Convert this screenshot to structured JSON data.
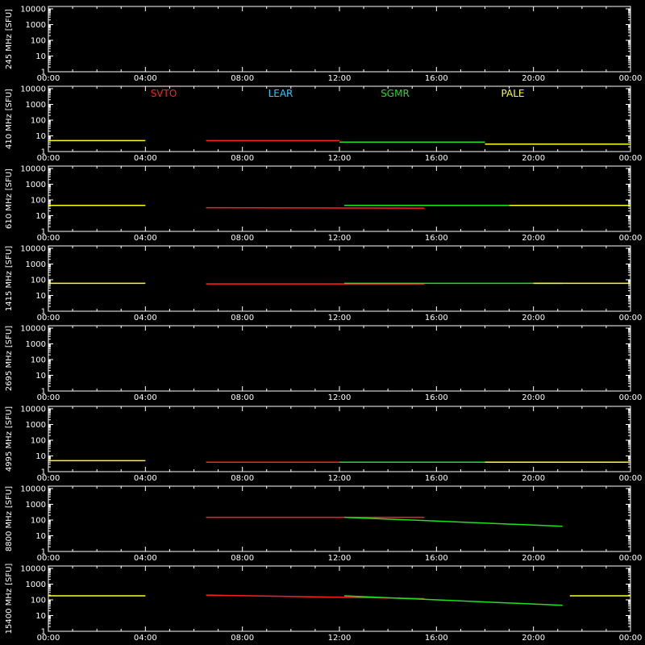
{
  "chart_data": {
    "type": "scatter",
    "x_unit": "UT",
    "x_ticks": [
      "00:00",
      "04:00",
      "08:00",
      "12:00",
      "16:00",
      "20:00",
      "00:00"
    ],
    "y_scale": "log",
    "y_ticks": [
      "1",
      "10",
      "100",
      "1000",
      "10000"
    ],
    "ylim": [
      1,
      10000
    ],
    "y_unit": "[SFU]",
    "legend": [
      {
        "name": "SVTO",
        "color": "#ff2020"
      },
      {
        "name": "LEAR",
        "color": "#20d0ff"
      },
      {
        "name": "SGMR",
        "color": "#20e020"
      },
      {
        "name": "PALE",
        "color": "#ffff20"
      }
    ],
    "panels": [
      {
        "label": "245 MHz",
        "segments": []
      },
      {
        "label": "410 MHz",
        "segments": [
          {
            "station": "PALE",
            "t0": 0,
            "t1": 4,
            "v0": 5,
            "v1": 5
          },
          {
            "station": "SVTO",
            "t0": 6.5,
            "t1": 12,
            "v0": 5,
            "v1": 5
          },
          {
            "station": "SGMR",
            "t0": 12,
            "t1": 18,
            "v0": 4,
            "v1": 4
          },
          {
            "station": "PALE",
            "t0": 18,
            "t1": 24,
            "v0": 3,
            "v1": 3
          }
        ]
      },
      {
        "label": "610 MHz",
        "segments": [
          {
            "station": "PALE",
            "t0": 0,
            "t1": 4,
            "v0": 45,
            "v1": 45
          },
          {
            "station": "SVTO",
            "t0": 6.5,
            "t1": 15.5,
            "v0": 32,
            "v1": 30
          },
          {
            "station": "SGMR",
            "t0": 12.2,
            "t1": 21.2,
            "v0": 45,
            "v1": 45
          },
          {
            "station": "PALE",
            "t0": 19,
            "t1": 24,
            "v0": 45,
            "v1": 45
          }
        ]
      },
      {
        "label": "1415 MHz",
        "segments": [
          {
            "station": "PALE",
            "t0": 0,
            "t1": 4,
            "v0": 60,
            "v1": 60
          },
          {
            "station": "SVTO",
            "t0": 6.5,
            "t1": 15.5,
            "v0": 55,
            "v1": 55
          },
          {
            "station": "SGMR",
            "t0": 12.2,
            "t1": 21.2,
            "v0": 60,
            "v1": 60
          },
          {
            "station": "PALE",
            "t0": 20,
            "t1": 24,
            "v0": 60,
            "v1": 60
          }
        ]
      },
      {
        "label": "2695 MHz",
        "segments": []
      },
      {
        "label": "4995 MHz",
        "segments": [
          {
            "station": "PALE",
            "t0": 0,
            "t1": 4,
            "v0": 5,
            "v1": 5
          },
          {
            "station": "SVTO",
            "t0": 6.5,
            "t1": 12,
            "v0": 4,
            "v1": 4
          },
          {
            "station": "SGMR",
            "t0": 12,
            "t1": 18,
            "v0": 4,
            "v1": 4
          },
          {
            "station": "PALE",
            "t0": 18,
            "t1": 24,
            "v0": 4,
            "v1": 4
          }
        ]
      },
      {
        "label": "8800 MHz",
        "segments": [
          {
            "station": "SVTO",
            "t0": 6.5,
            "t1": 15.5,
            "v0": 150,
            "v1": 150
          },
          {
            "station": "SGMR",
            "t0": 12.2,
            "t1": 21.2,
            "v0": 150,
            "v1": 40
          }
        ]
      },
      {
        "label": "15400 MHz",
        "segments": [
          {
            "station": "PALE",
            "t0": 0,
            "t1": 4,
            "v0": 180,
            "v1": 180
          },
          {
            "station": "SVTO",
            "t0": 6.5,
            "t1": 15.5,
            "v0": 200,
            "v1": 120
          },
          {
            "station": "SGMR",
            "t0": 12.2,
            "t1": 21.2,
            "v0": 180,
            "v1": 45
          },
          {
            "station": "PALE",
            "t0": 21.5,
            "t1": 24,
            "v0": 180,
            "v1": 180
          }
        ]
      }
    ]
  }
}
